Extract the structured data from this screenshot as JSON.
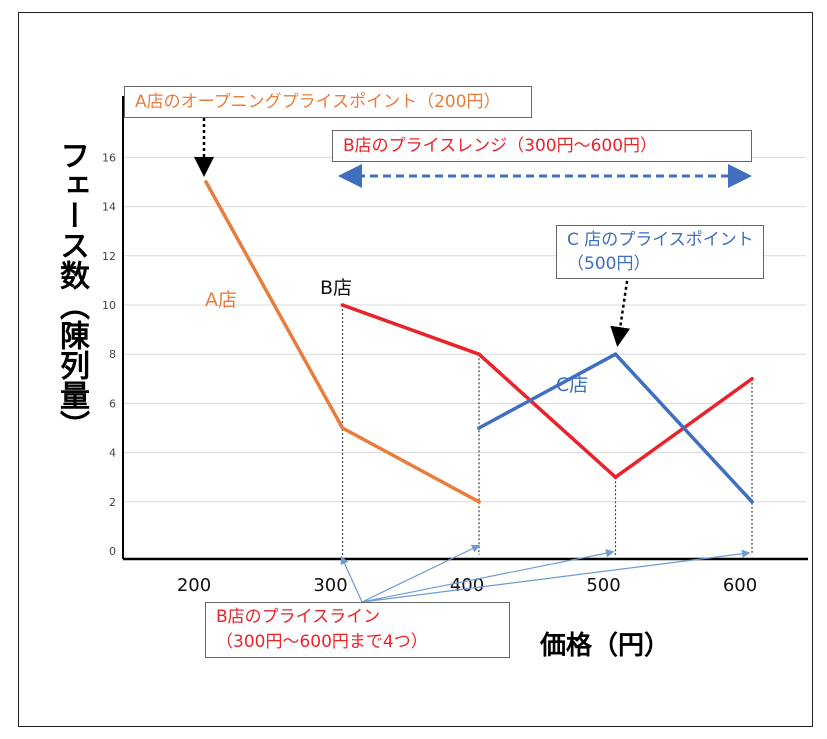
{
  "colors": {
    "a": "#e87d3e",
    "b": "#e8232a",
    "c": "#3f6fbe",
    "axis": "#000000",
    "grid": "#d9d9d9"
  },
  "chart_data": {
    "type": "line",
    "xlabel": "価格（円）",
    "ylabel": "フェース数（陳列量）",
    "xlim": [
      150,
      620
    ],
    "ylim": [
      0,
      17
    ],
    "xticks": [
      "200",
      "300",
      "400",
      "500",
      "600"
    ],
    "yticks": [
      "0",
      "2",
      "4",
      "6",
      "8",
      "10",
      "12",
      "14",
      "16"
    ],
    "grid": true,
    "series": [
      {
        "name": "A店",
        "color": "#e87d3e",
        "x": [
          200,
          300,
          400
        ],
        "y": [
          15,
          5,
          2
        ]
      },
      {
        "name": "B店",
        "color": "#e8232a",
        "x": [
          300,
          400,
          500,
          600
        ],
        "y": [
          10,
          8,
          3,
          7
        ]
      },
      {
        "name": "C店",
        "color": "#3f6fbe",
        "x": [
          400,
          500,
          600
        ],
        "y": [
          5,
          8,
          2
        ]
      }
    ],
    "annotations": {
      "a_opening": "A店のオープニングプライスポイント（200円）",
      "b_range": "B店のプライスレンジ（300円～600円）",
      "c_point_line1": "C 店のプライスポイント",
      "c_point_line2": "（500円）",
      "b_line_line1": "B店のプライスライン",
      "b_line_line2": "（300円～600円まで4つ）"
    }
  }
}
